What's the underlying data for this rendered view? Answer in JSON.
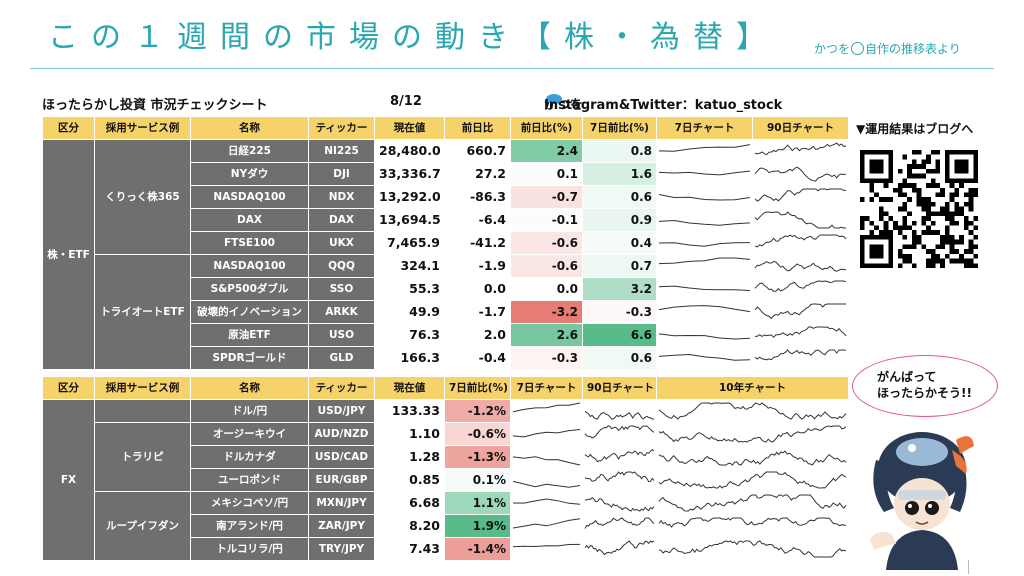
{
  "header": {
    "title": "この１週間の市場の動き【株・為替】",
    "credit_pre": "かつを",
    "credit_post": "自作の推移表より"
  },
  "sheet": {
    "name": "ほったらかし投資 市況チェックシート",
    "date": "8/12",
    "author_pre": "かつを",
    "author_post": "Instagram&Twitter：katuo_stock"
  },
  "colors": {
    "header_bg": "#f6d26a",
    "category_bg": "#6f6f6f",
    "accent": "#2aa7b0",
    "positive": "#57bb8a",
    "negative": "#e67c73"
  },
  "stock_table": {
    "headers": [
      "区分",
      "採用サービス例",
      "名称",
      "ティッカー",
      "現在値",
      "前日比",
      "前日比(%)",
      "7日前比(%)",
      "7日チャート",
      "90日チャート"
    ],
    "category": "株・ETF",
    "groups": [
      "くりっく株365",
      "トライオートETF"
    ],
    "rows": [
      {
        "name": "日経225",
        "ticker": "NI225",
        "price": "28,480.0",
        "chg": "660.7",
        "chg_pct": "2.4",
        "wk_pct": "0.8",
        "chg_pct_v": 2.4,
        "wk_pct_v": 0.8
      },
      {
        "name": "NYダウ",
        "ticker": "DJI",
        "price": "33,336.7",
        "chg": "27.2",
        "chg_pct": "0.1",
        "wk_pct": "1.6",
        "chg_pct_v": 0.1,
        "wk_pct_v": 1.6
      },
      {
        "name": "NASDAQ100",
        "ticker": "NDX",
        "price": "13,292.0",
        "chg": "-86.3",
        "chg_pct": "-0.7",
        "wk_pct": "0.6",
        "chg_pct_v": -0.7,
        "wk_pct_v": 0.6
      },
      {
        "name": "DAX",
        "ticker": "DAX",
        "price": "13,694.5",
        "chg": "-6.4",
        "chg_pct": "-0.1",
        "wk_pct": "0.9",
        "chg_pct_v": -0.1,
        "wk_pct_v": 0.9
      },
      {
        "name": "FTSE100",
        "ticker": "UKX",
        "price": "7,465.9",
        "chg": "-41.2",
        "chg_pct": "-0.6",
        "wk_pct": "0.4",
        "chg_pct_v": -0.6,
        "wk_pct_v": 0.4
      },
      {
        "name": "NASDAQ100",
        "ticker": "QQQ",
        "price": "324.1",
        "chg": "-1.9",
        "chg_pct": "-0.6",
        "wk_pct": "0.7",
        "chg_pct_v": -0.6,
        "wk_pct_v": 0.7
      },
      {
        "name": "S&P500ダブル",
        "ticker": "SSO",
        "price": "55.3",
        "chg": "0.0",
        "chg_pct": "0.0",
        "wk_pct": "3.2",
        "chg_pct_v": 0.0,
        "wk_pct_v": 3.2
      },
      {
        "name": "破壊的イノベーション",
        "ticker": "ARKK",
        "price": "49.9",
        "chg": "-1.7",
        "chg_pct": "-3.2",
        "wk_pct": "-0.3",
        "chg_pct_v": -3.2,
        "wk_pct_v": -0.3
      },
      {
        "name": "原油ETF",
        "ticker": "USO",
        "price": "76.3",
        "chg": "2.0",
        "chg_pct": "2.6",
        "wk_pct": "6.6",
        "chg_pct_v": 2.6,
        "wk_pct_v": 6.6
      },
      {
        "name": "SPDRゴールド",
        "ticker": "GLD",
        "price": "166.3",
        "chg": "-0.4",
        "chg_pct": "-0.3",
        "wk_pct": "0.6",
        "chg_pct_v": -0.3,
        "wk_pct_v": 0.6
      }
    ]
  },
  "fx_table": {
    "headers": [
      "区分",
      "採用サービス例",
      "名称",
      "ティッカー",
      "現在値",
      "7日前比(%)",
      "7日チャート",
      "90日チャート",
      "10年チャート"
    ],
    "category": "FX",
    "groups": [
      "トラリピ",
      "ループイフダン"
    ],
    "rows": [
      {
        "name": "ドル/円",
        "ticker": "USD/JPY",
        "price": "133.33",
        "wk_pct": "-1.2%",
        "wk_pct_v": -1.2
      },
      {
        "name": "オージーキウイ",
        "ticker": "AUD/NZD",
        "price": "1.10",
        "wk_pct": "-0.6%",
        "wk_pct_v": -0.6
      },
      {
        "name": "ドルカナダ",
        "ticker": "USD/CAD",
        "price": "1.28",
        "wk_pct": "-1.3%",
        "wk_pct_v": -1.3
      },
      {
        "name": "ユーロポンド",
        "ticker": "EUR/GBP",
        "price": "0.85",
        "wk_pct": "0.1%",
        "wk_pct_v": 0.1
      },
      {
        "name": "メキシコペソ/円",
        "ticker": "MXN/JPY",
        "price": "6.68",
        "wk_pct": "1.1%",
        "wk_pct_v": 1.1
      },
      {
        "name": "南アランド/円",
        "ticker": "ZAR/JPY",
        "price": "8.20",
        "wk_pct": "1.9%",
        "wk_pct_v": 1.9
      },
      {
        "name": "トルコリラ/円",
        "ticker": "TRY/JPY",
        "price": "7.43",
        "wk_pct": "-1.4%",
        "wk_pct_v": -1.4
      }
    ]
  },
  "sidebar": {
    "promo": "▼運用結果はブログへ",
    "qr_icon": "qr-code",
    "bubble_line1": "がんばって",
    "bubble_line2": "ほったらかそう!!",
    "avatar_icon": "katsuo-character"
  }
}
